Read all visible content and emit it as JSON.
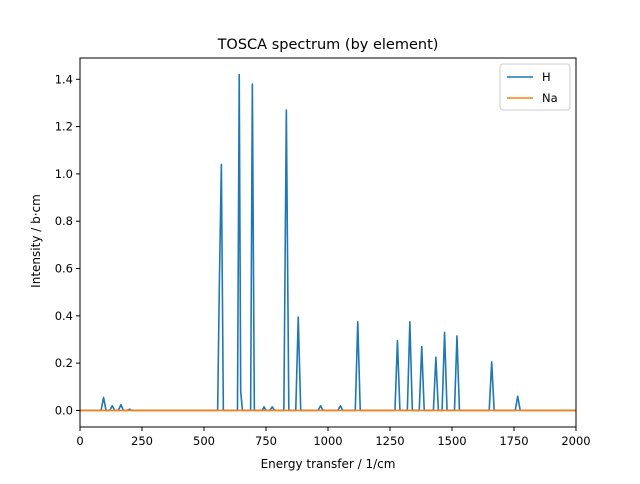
{
  "chart_data": {
    "type": "line",
    "title": "TOSCA spectrum (by element)",
    "xlabel": "Energy transfer / 1/cm",
    "ylabel": "Intensity / b·cm",
    "xlim": [
      0,
      2000
    ],
    "ylim": [
      -0.07,
      1.49
    ],
    "x_ticks": [
      0,
      250,
      500,
      750,
      1000,
      1250,
      1500,
      1750,
      2000
    ],
    "y_ticks": [
      0.0,
      0.2,
      0.4,
      0.6,
      0.8,
      1.0,
      1.2,
      1.4
    ],
    "grid": false,
    "legend_position": "top-right",
    "series": [
      {
        "name": "H",
        "color": "#1f77b4",
        "x": [
          0,
          85,
          95,
          105,
          120,
          130,
          140,
          155,
          165,
          175,
          190,
          200,
          210,
          555,
          562,
          570,
          578,
          635,
          642,
          648,
          655,
          688,
          695,
          703,
          720,
          735,
          742,
          750,
          765,
          775,
          785,
          822,
          832,
          842,
          870,
          880,
          890,
          960,
          970,
          980,
          1040,
          1050,
          1060,
          1110,
          1120,
          1130,
          1270,
          1280,
          1290,
          1320,
          1330,
          1340,
          1368,
          1378,
          1388,
          1425,
          1435,
          1445,
          1460,
          1470,
          1480,
          1510,
          1520,
          1530,
          1650,
          1660,
          1670,
          1755,
          1765,
          1775,
          2000
        ],
        "y": [
          0,
          0,
          0.055,
          0,
          0,
          0.02,
          0,
          0,
          0.025,
          0,
          0,
          0.005,
          0,
          0,
          0.54,
          1.04,
          0,
          0,
          1.42,
          0.08,
          0,
          0,
          1.38,
          0,
          0,
          0,
          0.015,
          0,
          0,
          0.015,
          0,
          0,
          1.27,
          0,
          0,
          0.395,
          0,
          0,
          0.02,
          0,
          0,
          0.02,
          0,
          0,
          0.375,
          0,
          0,
          0.295,
          0,
          0,
          0.375,
          0,
          0,
          0.27,
          0,
          0,
          0.225,
          0,
          0,
          0.33,
          0,
          0,
          0.315,
          0,
          0,
          0.205,
          0,
          0,
          0.06,
          0,
          0
        ]
      },
      {
        "name": "Na",
        "color": "#ff7f0e",
        "x": [
          0,
          2000
        ],
        "y": [
          0,
          0
        ]
      }
    ]
  }
}
